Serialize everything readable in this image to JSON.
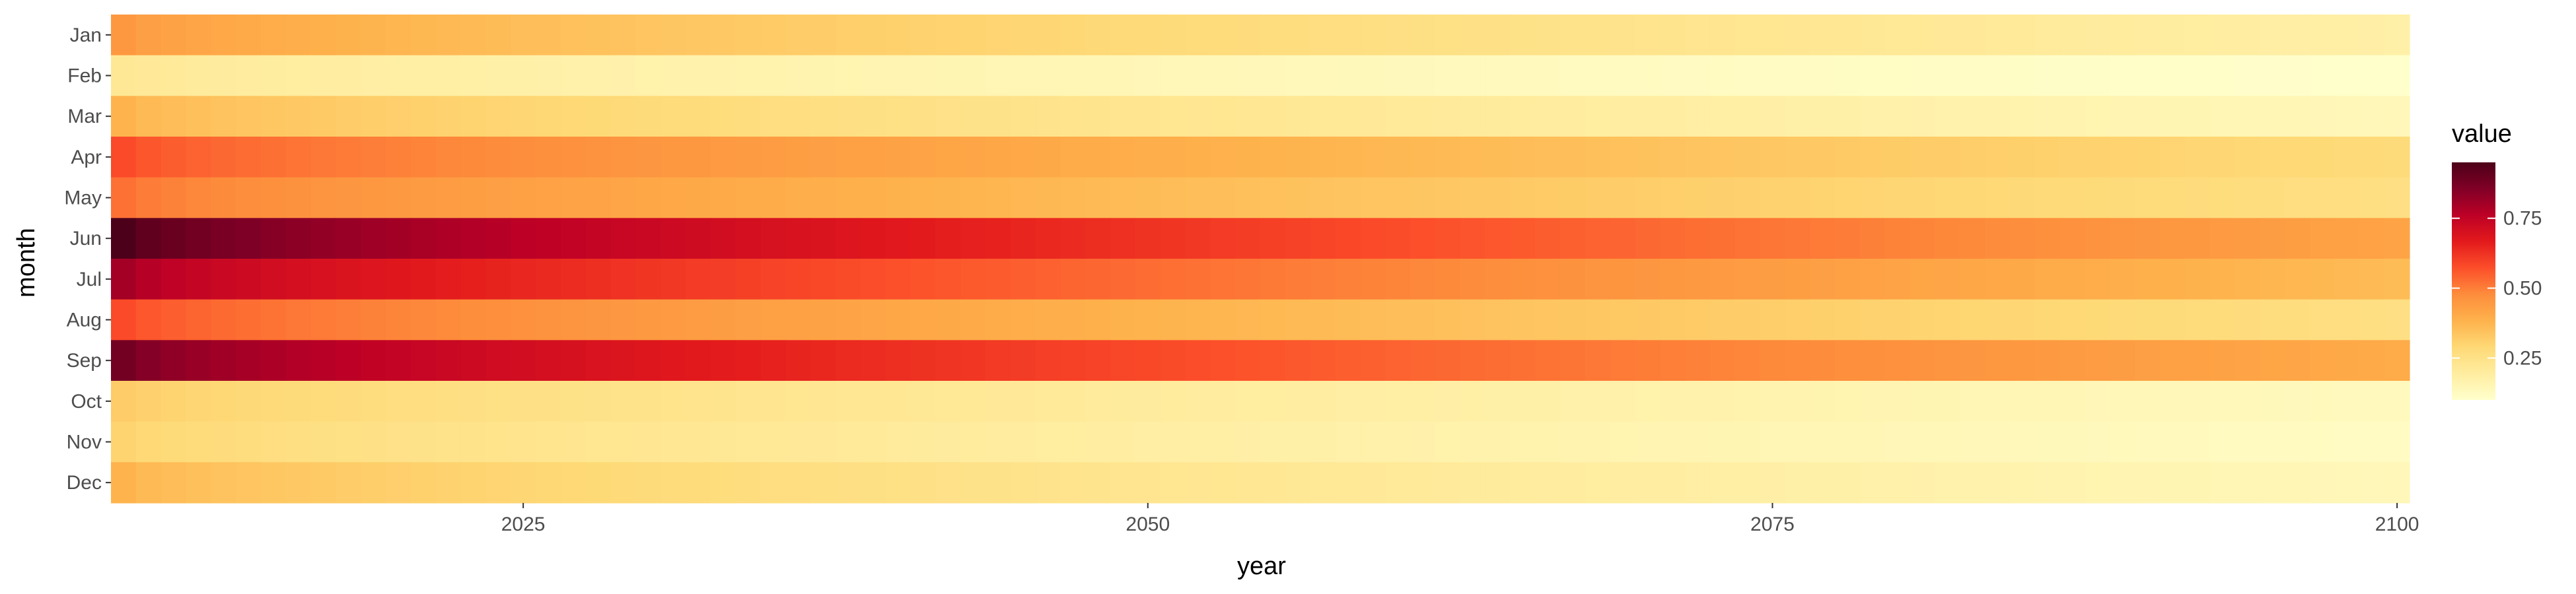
{
  "chart_data": {
    "type": "heatmap",
    "title": "",
    "xlabel": "year",
    "ylabel": "month",
    "x_start": 2009,
    "x_end": 2100,
    "xlim": [
      2008.5,
      2100.5
    ],
    "x_ticks": [
      2025,
      2050,
      2075,
      2100
    ],
    "months": [
      "Jan",
      "Feb",
      "Mar",
      "Apr",
      "May",
      "Jun",
      "Jul",
      "Aug",
      "Sep",
      "Oct",
      "Nov",
      "Dec"
    ],
    "series": [
      {
        "name": "Jan",
        "start_value": 0.45,
        "end_value": 0.18
      },
      {
        "name": "Feb",
        "start_value": 0.22,
        "end_value": 0.1
      },
      {
        "name": "Mar",
        "start_value": 0.38,
        "end_value": 0.14
      },
      {
        "name": "Apr",
        "start_value": 0.58,
        "end_value": 0.28
      },
      {
        "name": "May",
        "start_value": 0.52,
        "end_value": 0.26
      },
      {
        "name": "Jun",
        "start_value": 0.95,
        "end_value": 0.42
      },
      {
        "name": "Jul",
        "start_value": 0.8,
        "end_value": 0.36
      },
      {
        "name": "Aug",
        "start_value": 0.58,
        "end_value": 0.26
      },
      {
        "name": "Sep",
        "start_value": 0.88,
        "end_value": 0.4
      },
      {
        "name": "Oct",
        "start_value": 0.32,
        "end_value": 0.13
      },
      {
        "name": "Nov",
        "start_value": 0.3,
        "end_value": 0.12
      },
      {
        "name": "Dec",
        "start_value": 0.38,
        "end_value": 0.14
      }
    ],
    "legend": {
      "title": "value",
      "ticks": [
        0.25,
        0.5,
        0.75
      ],
      "tick_labels": [
        "0.25",
        "0.50",
        "0.75"
      ],
      "range": [
        0.1,
        0.95
      ],
      "placement": "right"
    },
    "palette": [
      "#ffffcc",
      "#ffeda0",
      "#fed976",
      "#feb24c",
      "#fd8d3c",
      "#fc4e2a",
      "#e31a1c",
      "#bd0026",
      "#800026",
      "#4d0019"
    ],
    "grid": false
  }
}
